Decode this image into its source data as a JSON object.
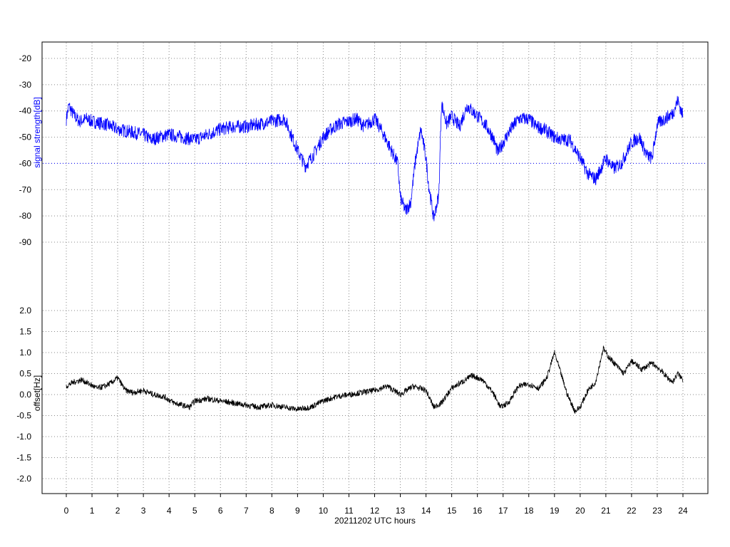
{
  "chart_data": [
    {
      "type": "line",
      "ylabel": "signal strength[dB]",
      "xlim": [
        0,
        24
      ],
      "ylim": [
        -95,
        -15
      ],
      "yticks": [
        "-20",
        "-30",
        "-40",
        "-50",
        "-60",
        "-70",
        "-80",
        "-90"
      ],
      "grid": true,
      "reference_line": -60,
      "colors": {
        "series": "#0000ff",
        "reference": "#0000ff",
        "grid": "#888888"
      },
      "series": [
        {
          "x": [
            0,
            0.1,
            0.25,
            0.5,
            0.8,
            1,
            1.5,
            2,
            2.5,
            3,
            3.3,
            3.6,
            4,
            4.5,
            5,
            5.5,
            6,
            6.5,
            7,
            7.5,
            8,
            8.5,
            9,
            9.3,
            9.6,
            10,
            10.3,
            10.6,
            11,
            11.3,
            11.6,
            12,
            12.3,
            12.6,
            12.9,
            13.0,
            13.2,
            13.4,
            13.6,
            13.8,
            14.0,
            14.1,
            14.3,
            14.5,
            14.6,
            14.8,
            15,
            15.3,
            15.6,
            16,
            16.3,
            16.6,
            16.8,
            17,
            17.3,
            17.6,
            18,
            18.3,
            18.6,
            19,
            19.3,
            19.6,
            20,
            20.3,
            20.6,
            21,
            21.3,
            21.6,
            22,
            22.3,
            22.6,
            22.8,
            23,
            23.3,
            23.6,
            23.8,
            24
          ],
          "values": [
            -43,
            -38,
            -41,
            -44,
            -43,
            -44,
            -45,
            -47,
            -48,
            -49,
            -51,
            -50,
            -49,
            -50,
            -51,
            -49,
            -47,
            -46,
            -46,
            -45,
            -44,
            -43,
            -55,
            -61,
            -57,
            -50,
            -47,
            -45,
            -44,
            -43,
            -46,
            -43,
            -48,
            -54,
            -60,
            -73,
            -78,
            -75,
            -58,
            -47,
            -58,
            -68,
            -81,
            -72,
            -37,
            -45,
            -42,
            -46,
            -38,
            -42,
            -45,
            -50,
            -56,
            -52,
            -47,
            -43,
            -43,
            -46,
            -47,
            -50,
            -51,
            -51,
            -58,
            -64,
            -66,
            -58,
            -62,
            -60,
            -52,
            -50,
            -57,
            -58,
            -45,
            -43,
            -41,
            -36,
            -42
          ]
        }
      ]
    },
    {
      "type": "line",
      "ylabel": "offset[Hz]",
      "xlabel": "20211202 UTC hours",
      "xlim": [
        0,
        24
      ],
      "ylim": [
        -2.3,
        2.2
      ],
      "xticks": [
        "0",
        "1",
        "2",
        "3",
        "4",
        "5",
        "6",
        "7",
        "8",
        "9",
        "10",
        "11",
        "12",
        "13",
        "14",
        "15",
        "16",
        "17",
        "18",
        "19",
        "20",
        "21",
        "22",
        "23",
        "24"
      ],
      "yticks": [
        "2.0",
        "1.5",
        "1.0",
        "0.5",
        "0.0",
        "-0.5",
        "-1.0",
        "-1.5",
        "-2.0"
      ],
      "grid": true,
      "colors": {
        "series": "#000000",
        "grid": "#888888"
      },
      "series": [
        {
          "x": [
            0,
            0.3,
            0.6,
            0.9,
            1.2,
            1.5,
            1.8,
            2.0,
            2.3,
            2.6,
            3.0,
            3.4,
            3.8,
            4.2,
            4.5,
            4.8,
            5.0,
            5.5,
            6,
            6.5,
            7,
            7.5,
            8,
            8.5,
            9,
            9.5,
            10,
            10.5,
            11,
            11.5,
            12,
            12.5,
            13,
            13.5,
            14,
            14.3,
            14.6,
            15,
            15.4,
            15.8,
            16.2,
            16.6,
            16.9,
            17.2,
            17.6,
            18,
            18.4,
            18.7,
            19.0,
            19.2,
            19.5,
            19.8,
            20.0,
            20.3,
            20.6,
            20.9,
            21.1,
            21.4,
            21.7,
            22.0,
            22.4,
            22.8,
            23.1,
            23.4,
            23.6,
            23.8,
            24
          ],
          "values": [
            0.2,
            0.3,
            0.35,
            0.25,
            0.15,
            0.2,
            0.3,
            0.4,
            0.1,
            0.05,
            0.1,
            0.0,
            -0.05,
            -0.2,
            -0.25,
            -0.3,
            -0.15,
            -0.1,
            -0.15,
            -0.2,
            -0.25,
            -0.3,
            -0.25,
            -0.3,
            -0.35,
            -0.3,
            -0.15,
            -0.05,
            0.0,
            0.05,
            0.1,
            0.2,
            0.0,
            0.2,
            0.1,
            -0.3,
            -0.2,
            0.15,
            0.3,
            0.45,
            0.35,
            0.05,
            -0.3,
            -0.2,
            0.2,
            0.25,
            0.15,
            0.4,
            1.0,
            0.6,
            0.0,
            -0.4,
            -0.3,
            0.1,
            0.3,
            1.1,
            0.9,
            0.7,
            0.5,
            0.8,
            0.6,
            0.75,
            0.6,
            0.4,
            0.3,
            0.5,
            0.35
          ]
        }
      ]
    }
  ]
}
